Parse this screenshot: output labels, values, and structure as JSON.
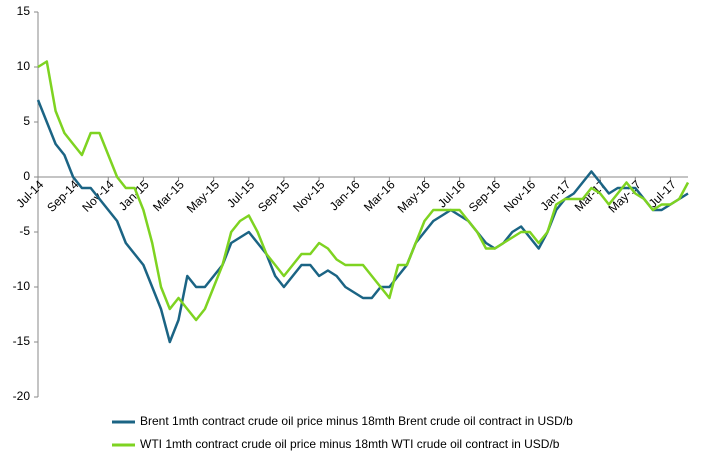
{
  "chart_data": {
    "type": "line",
    "categories": [
      "Jul-14",
      null,
      null,
      null,
      "Sep-14",
      null,
      null,
      null,
      "Nov-14",
      null,
      null,
      null,
      "Jan-15",
      null,
      null,
      null,
      "Mar-15",
      null,
      null,
      null,
      "May-15",
      null,
      null,
      null,
      "Jul-15",
      null,
      null,
      null,
      "Sep-15",
      null,
      null,
      null,
      "Nov-15",
      null,
      null,
      null,
      "Jan-16",
      null,
      null,
      null,
      "Mar-16",
      null,
      null,
      null,
      "May-16",
      null,
      null,
      null,
      "Jul-16",
      null,
      null,
      null,
      "Sep-16",
      null,
      null,
      null,
      "Nov-16",
      null,
      null,
      null,
      "Jan-17",
      null,
      null,
      null,
      "Mar-17",
      null,
      null,
      null,
      "May-17",
      null,
      null,
      null,
      "Jul-17",
      null,
      null
    ],
    "series": [
      {
        "name": "Brent 1mth contract crude oil price minus 18mth Brent crude oil contract in USD/b",
        "color": "#1b6484",
        "values": [
          7,
          5,
          3,
          2,
          0,
          -1,
          -1,
          -2,
          -3,
          -4,
          -6,
          -7,
          -8,
          -10,
          -12,
          -15,
          -13,
          -9,
          -10,
          -10,
          -9,
          -8,
          -6,
          -5.5,
          -5,
          -6,
          -7,
          -9,
          -10,
          -9,
          -8,
          -8,
          -9,
          -8.5,
          -9,
          -10,
          -10.5,
          -11,
          -11,
          -10,
          -10,
          -9,
          -8,
          -6,
          -5,
          -4,
          -3.5,
          -3,
          -3.5,
          -4,
          -5,
          -6,
          -6.5,
          -6,
          -5,
          -4.5,
          -5.5,
          -6.5,
          -5,
          -3,
          -2,
          -1.5,
          -0.5,
          0.5,
          -0.5,
          -1.5,
          -1,
          -1,
          -1,
          -2,
          -3,
          -3,
          -2.5,
          -2,
          -1.5
        ]
      },
      {
        "name": "WTI 1mth contract crude oil price minus 18mth WTI crude oil contract in USD/b",
        "color": "#7ed321",
        "values": [
          10,
          10.5,
          6,
          4,
          3,
          2,
          4,
          4,
          2,
          0,
          -1,
          -1,
          -3,
          -6,
          -10,
          -12,
          -11,
          -12,
          -13,
          -12,
          -10,
          -8,
          -5,
          -4,
          -3.5,
          -5,
          -7,
          -8,
          -9,
          -8,
          -7,
          -7,
          -6,
          -6.5,
          -7.5,
          -8,
          -8,
          -8,
          -9,
          -10,
          -11,
          -8,
          -8,
          -6,
          -4,
          -3,
          -3,
          -3,
          -3,
          -4,
          -5,
          -6.5,
          -6.5,
          -6,
          -5.5,
          -5,
          -5,
          -6,
          -5,
          -2.5,
          -2,
          -2,
          -2,
          -1,
          -1.5,
          -2.5,
          -1.5,
          -0.5,
          -1.5,
          -2,
          -3,
          -2.5,
          -2.5,
          -2,
          -0.5
        ]
      }
    ],
    "ylim": [
      -20,
      15
    ],
    "yticks": [
      15,
      10,
      5,
      0,
      -5,
      -10,
      -15,
      -20
    ]
  }
}
